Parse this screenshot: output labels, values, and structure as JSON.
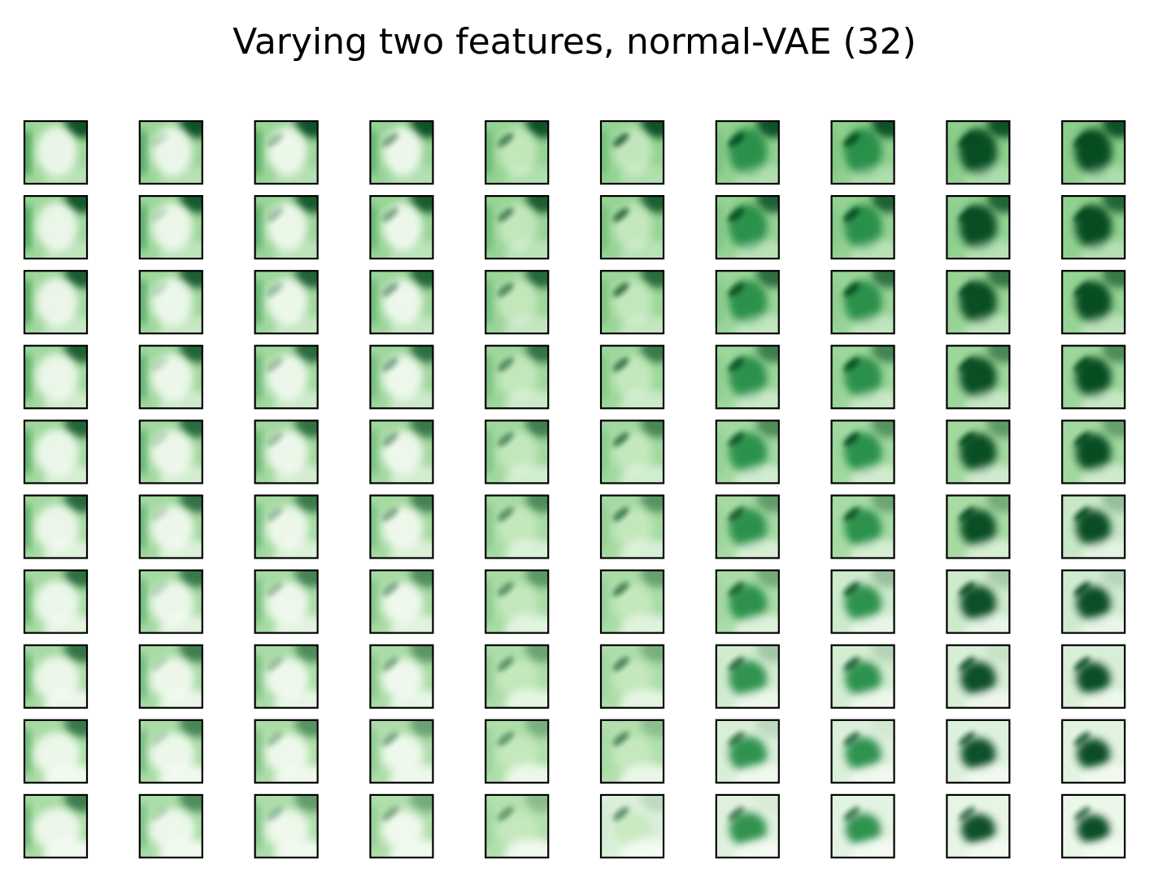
{
  "figure": {
    "title": "Varying two features, normal-VAE (32)",
    "rows": 10,
    "columns": 10,
    "colormap": "Greens",
    "panel_border_color": "#000000",
    "colormap_stops": [
      "#f7fcf5",
      "#c7e9c0",
      "#74c476",
      "#238b45",
      "#00441b"
    ]
  }
}
